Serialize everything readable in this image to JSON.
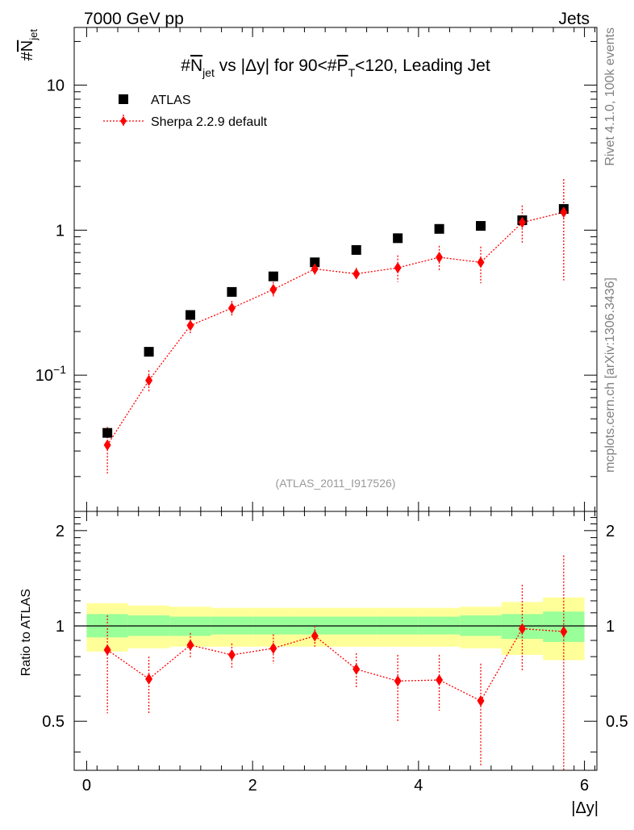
{
  "header": {
    "left": "7000 GeV pp",
    "right": "Jets"
  },
  "side_labels": {
    "rivet": "Rivet 4.1.0,  100k events",
    "mcplots": "mcplots.cern.ch [arXiv:1306.3436]"
  },
  "chart_data": {
    "type": "scatter",
    "title": "#N_jet vs |Δy| for 90<#P_T<120, Leading Jet",
    "title_parts": {
      "hash1": "#",
      "n": "N",
      "jet": "jet",
      "mid": " vs |Δy| for 90<#",
      "p": "P",
      "t": "T",
      "tail": "<120, Leading Jet"
    },
    "watermark": "(ATLAS_2011_I917526)",
    "xlabel": "|Δy|",
    "ylabel_parts": {
      "hash": "#",
      "n": "N",
      "jet": "jet"
    },
    "ratio_ylabel": "Ratio to ATLAS",
    "xlim": [
      -0.15,
      6.15
    ],
    "ylim_log": [
      0.0115,
      25
    ],
    "ratio_ylim": [
      0.35,
      2.3
    ],
    "x_ticks": [
      0,
      2,
      4,
      6
    ],
    "x_tick_labels": [
      "0",
      "2",
      "4",
      "6"
    ],
    "y_ticks": [
      {
        "value": 0.1,
        "base": "10",
        "exp": "−1"
      },
      {
        "value": 1,
        "label": "1"
      },
      {
        "value": 10,
        "label": "10"
      }
    ],
    "ratio_ticks": [
      {
        "value": 0.5,
        "label": "0.5"
      },
      {
        "value": 1,
        "label": "1"
      },
      {
        "value": 2,
        "label": "2"
      }
    ],
    "legend": {
      "placement": "top-left",
      "entries": [
        "ATLAS",
        "Sherpa 2.2.9 default"
      ]
    },
    "x": [
      0.25,
      0.75,
      1.25,
      1.75,
      2.25,
      2.75,
      3.25,
      3.75,
      4.25,
      4.75,
      5.25,
      5.75
    ],
    "bin_edges": [
      0,
      0.5,
      1,
      1.5,
      2,
      2.5,
      3,
      3.5,
      4,
      4.5,
      5,
      5.5,
      6
    ],
    "series": [
      {
        "name": "ATLAS",
        "color": "#000000",
        "values": [
          0.04,
          0.145,
          0.26,
          0.375,
          0.48,
          0.6,
          0.73,
          0.88,
          1.02,
          1.07,
          1.17,
          1.4
        ]
      },
      {
        "name": "Sherpa 2.2.9 default",
        "color": "#ff0000",
        "values": [
          0.033,
          0.092,
          0.22,
          0.29,
          0.39,
          0.54,
          0.5,
          0.55,
          0.65,
          0.6,
          1.13,
          1.33
        ],
        "err_low": [
          0.021,
          0.077,
          0.195,
          0.255,
          0.345,
          0.49,
          0.45,
          0.44,
          0.52,
          0.43,
          0.8,
          0.45
        ],
        "err_high": [
          0.044,
          0.108,
          0.245,
          0.325,
          0.44,
          0.59,
          0.55,
          0.67,
          0.78,
          0.77,
          1.48,
          2.25
        ]
      }
    ],
    "ratio": {
      "values": [
        0.84,
        0.68,
        0.87,
        0.81,
        0.85,
        0.93,
        0.73,
        0.67,
        0.675,
        0.58,
        0.98,
        0.96
      ],
      "err_low": [
        0.53,
        0.53,
        0.79,
        0.73,
        0.76,
        0.86,
        0.64,
        0.5,
        0.54,
        0.36,
        0.72,
        0.33
      ],
      "err_high": [
        1.08,
        0.8,
        0.95,
        0.88,
        0.94,
        1.0,
        0.82,
        0.81,
        0.81,
        0.76,
        1.35,
        1.67
      ],
      "band_outer_low": [
        0.83,
        0.85,
        0.86,
        0.86,
        0.86,
        0.86,
        0.86,
        0.86,
        0.86,
        0.85,
        0.81,
        0.78
      ],
      "band_outer_high": [
        1.18,
        1.16,
        1.15,
        1.14,
        1.14,
        1.14,
        1.14,
        1.14,
        1.14,
        1.15,
        1.19,
        1.23
      ],
      "band_inner_low": [
        0.92,
        0.93,
        0.93,
        0.94,
        0.94,
        0.94,
        0.94,
        0.94,
        0.94,
        0.93,
        0.91,
        0.89
      ],
      "band_inner_high": [
        1.09,
        1.08,
        1.07,
        1.07,
        1.07,
        1.07,
        1.07,
        1.07,
        1.07,
        1.08,
        1.09,
        1.11
      ]
    },
    "colors": {
      "band_outer": "#ffff99",
      "band_inner": "#99ff99",
      "data": "#000000",
      "mc": "#ff0000"
    }
  }
}
